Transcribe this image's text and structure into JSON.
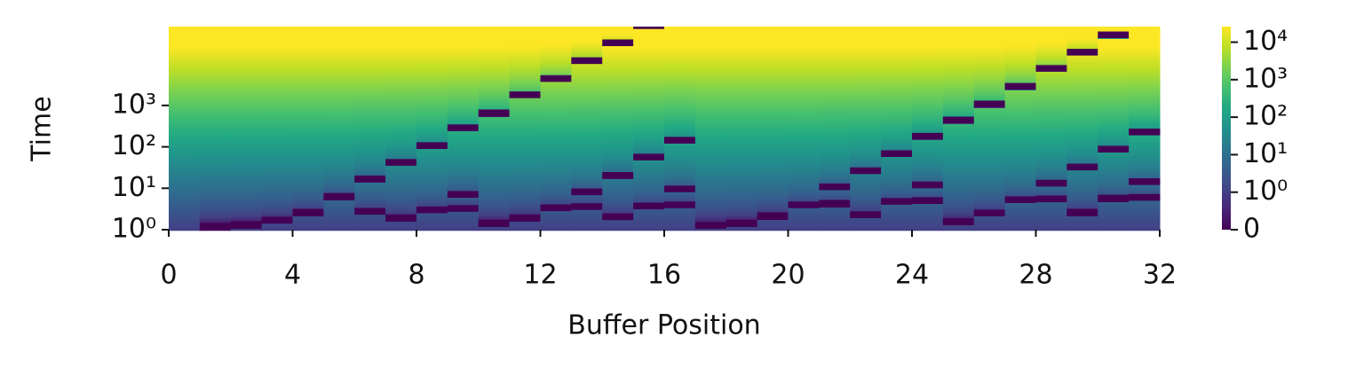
{
  "chart_data": {
    "type": "heatmap",
    "xlabel": "Buffer Position",
    "ylabel": "Time",
    "xlim": [
      0,
      32
    ],
    "xticks": [
      0,
      4,
      8,
      12,
      16,
      20,
      24,
      28,
      32
    ],
    "ylim": [
      1,
      80000
    ],
    "log_y": true,
    "yticks": [
      {
        "value": 1,
        "label": "10⁰"
      },
      {
        "value": 10,
        "label": "10¹"
      },
      {
        "value": 100,
        "label": "10²"
      },
      {
        "value": 1000,
        "label": "10³"
      }
    ],
    "colormap": "viridis",
    "colorbar": {
      "lim": [
        0,
        26000
      ],
      "symlog": true,
      "ticks": [
        0,
        {
          "value": 1,
          "label": "10⁰"
        },
        {
          "value": 10,
          "label": "10¹"
        },
        {
          "value": 100,
          "label": "10²"
        },
        {
          "value": 1000,
          "label": "10³"
        },
        {
          "value": 10000,
          "label": "10⁴"
        }
      ]
    },
    "resets": [
      [],
      [
        1.0
      ],
      [
        1.1
      ],
      [
        1.4
      ],
      [
        2.2
      ],
      [
        5.3
      ],
      [
        2.3,
        14
      ],
      [
        1.6,
        35
      ],
      [
        2.5,
        89
      ],
      [
        2.7,
        5.9,
        240
      ],
      [
        1.2,
        550
      ],
      [
        1.6,
        1500
      ],
      [
        2.8,
        3700
      ],
      [
        3.0,
        6.8,
        10000
      ],
      [
        1.7,
        17,
        27000
      ],
      [
        3.1,
        47,
        70000
      ],
      [
        3.3,
        8,
        120
      ],
      [
        1.05
      ],
      [
        1.2
      ],
      [
        1.8
      ],
      [
        3.3
      ],
      [
        3.6,
        9
      ],
      [
        1.9,
        22
      ],
      [
        4,
        57
      ],
      [
        4.2,
        10,
        150
      ],
      [
        1.3,
        370
      ],
      [
        2.1,
        900
      ],
      [
        4.4,
        2400
      ],
      [
        4.6,
        11,
        6500
      ],
      [
        2.2,
        27,
        16000
      ],
      [
        4.8,
        73,
        42000
      ],
      [
        5,
        12,
        190
      ]
    ]
  }
}
